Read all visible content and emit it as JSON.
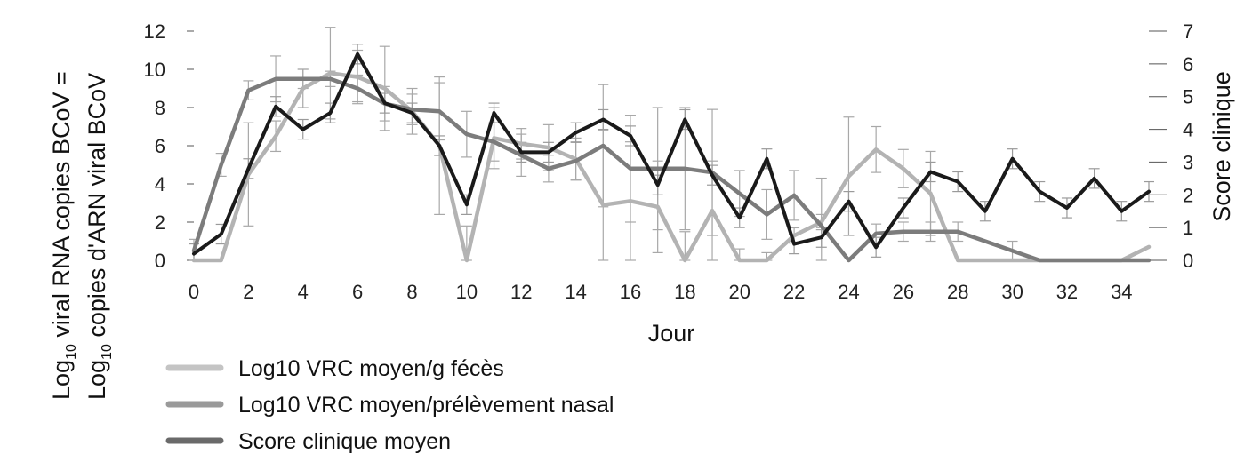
{
  "chart_data": {
    "type": "line",
    "xlabel": "Jour",
    "ylabel_left_line1": "viral RNA copies BCoV =",
    "ylabel_left_line2": "copies d'ARN viral BCoV",
    "ylabel_left_prefix": "Log",
    "ylabel_left_sub": "10",
    "ylabel_right": "Score clinique",
    "x_ticks": [
      0,
      2,
      4,
      6,
      8,
      10,
      12,
      14,
      16,
      18,
      20,
      22,
      24,
      26,
      28,
      30,
      32,
      34
    ],
    "y_left_ticks": [
      0,
      2,
      4,
      6,
      8,
      10,
      12
    ],
    "y_right_ticks": [
      0,
      1,
      2,
      3,
      4,
      5,
      6,
      7
    ],
    "xlim": [
      0,
      35
    ],
    "ylim_left": [
      0,
      12
    ],
    "ylim_right": [
      0,
      7
    ],
    "grid": false,
    "legend_position": "bottom-left",
    "series": [
      {
        "name": "Log10 VRC moyen/g fécès",
        "axis": "left",
        "color": "#b3b3b3",
        "x": [
          0,
          1,
          2,
          3,
          4,
          5,
          6,
          7,
          8,
          9,
          10,
          11,
          12,
          13,
          14,
          15,
          16,
          17,
          18,
          19,
          20,
          21,
          22,
          23,
          24,
          25,
          26,
          27,
          28,
          29,
          30,
          31,
          32,
          33,
          34,
          35
        ],
        "values": [
          0,
          0,
          4.5,
          6.5,
          9,
          9.8,
          9.6,
          9,
          7.8,
          6,
          0,
          6.4,
          6.1,
          5.9,
          5.3,
          2.9,
          3.1,
          2.8,
          0,
          2.6,
          0,
          0,
          1.3,
          2,
          4.4,
          5.8,
          4.8,
          3.5,
          0,
          0,
          0,
          0,
          0,
          0,
          0,
          0.7
        ],
        "err": [
          0,
          0,
          2.7,
          0.8,
          1,
          2.4,
          1.4,
          2.2,
          1.2,
          3.6,
          1.8,
          1.6,
          0.8,
          1.2,
          1.1,
          3.9,
          3.1,
          2.4,
          1.5,
          2.6,
          0.6,
          0.4,
          0.4,
          0.4,
          3.1,
          1.2,
          1,
          2.2,
          0,
          0,
          0,
          0,
          0,
          0,
          0,
          0
        ]
      },
      {
        "name": "Log10 VRC moyen/prélèvement nasal",
        "axis": "left",
        "color": "#7c7c7c",
        "x": [
          0,
          1,
          2,
          3,
          4,
          5,
          6,
          7,
          8,
          9,
          10,
          11,
          12,
          13,
          14,
          15,
          16,
          17,
          18,
          19,
          20,
          21,
          22,
          23,
          24,
          25,
          26,
          27,
          28,
          29,
          30,
          31,
          32,
          33,
          34,
          35
        ],
        "values": [
          0.5,
          5,
          8.9,
          9.5,
          9.5,
          9.5,
          9,
          8.2,
          7.9,
          7.8,
          6.6,
          6.2,
          5.5,
          4.8,
          5.2,
          6,
          4.8,
          4.8,
          4.8,
          4.6,
          3.5,
          2.4,
          3.4,
          1.8,
          0,
          1.4,
          1.5,
          1.5,
          1.5,
          1,
          0.5,
          0,
          0,
          0,
          0,
          0
        ],
        "err": [
          0.6,
          0.6,
          0.5,
          1.2,
          0.5,
          0.4,
          0.7,
          0.9,
          0.8,
          1.5,
          1.2,
          1,
          1.1,
          0.7,
          1,
          3.2,
          2.8,
          3.2,
          3.2,
          3.3,
          1.2,
          1.3,
          1.3,
          2.5,
          0,
          0.5,
          0.5,
          0.5,
          0.5,
          0,
          0.5,
          0,
          0,
          0,
          0,
          0
        ]
      },
      {
        "name": "Score clinique moyen",
        "axis": "right",
        "color": "#1a1a1a",
        "x": [
          0,
          1,
          2,
          3,
          4,
          5,
          6,
          7,
          8,
          9,
          10,
          11,
          12,
          13,
          14,
          15,
          16,
          17,
          18,
          19,
          20,
          21,
          22,
          23,
          24,
          25,
          26,
          27,
          28,
          29,
          30,
          31,
          32,
          33,
          34,
          35
        ],
        "values": [
          0.2,
          0.8,
          2.8,
          4.7,
          4,
          4.5,
          6.3,
          4.8,
          4.5,
          3.5,
          1.7,
          4.5,
          3.3,
          3.3,
          3.9,
          4.3,
          3.8,
          2.3,
          4.3,
          2.6,
          1.3,
          3.1,
          0.5,
          0.7,
          1.8,
          0.4,
          1.6,
          2.7,
          2.4,
          1.5,
          3.1,
          2.1,
          1.6,
          2.5,
          1.5,
          2.1
        ],
        "err": [
          0.3,
          0.3,
          0.3,
          0.3,
          0.3,
          0.3,
          0.3,
          0.3,
          0.3,
          0.3,
          0.3,
          0.3,
          0.3,
          0.3,
          0.3,
          0.3,
          0.3,
          0.3,
          0.3,
          0.3,
          0.3,
          0.3,
          0.3,
          0.3,
          0.3,
          0.3,
          0.3,
          0.3,
          0.3,
          0.3,
          0.3,
          0.3,
          0.3,
          0.3,
          0.3,
          0.3
        ]
      }
    ]
  }
}
